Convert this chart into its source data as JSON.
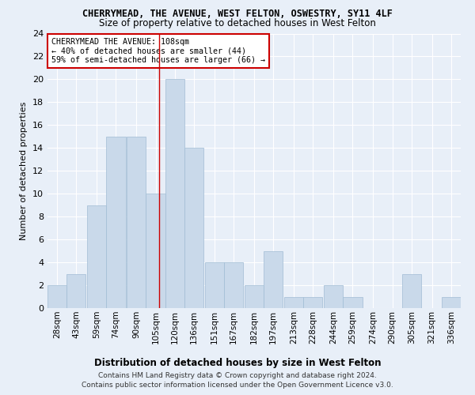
{
  "title": "CHERRYMEAD, THE AVENUE, WEST FELTON, OSWESTRY, SY11 4LF",
  "subtitle": "Size of property relative to detached houses in West Felton",
  "xlabel": "Distribution of detached houses by size in West Felton",
  "ylabel": "Number of detached properties",
  "bar_color": "#c9d9ea",
  "bar_edge_color": "#a0bcd4",
  "vline_x": 108,
  "vline_color": "#cc0000",
  "categories": [
    "28sqm",
    "43sqm",
    "59sqm",
    "74sqm",
    "90sqm",
    "105sqm",
    "120sqm",
    "136sqm",
    "151sqm",
    "167sqm",
    "182sqm",
    "197sqm",
    "213sqm",
    "228sqm",
    "244sqm",
    "259sqm",
    "274sqm",
    "290sqm",
    "305sqm",
    "321sqm",
    "336sqm"
  ],
  "values": [
    2,
    3,
    9,
    15,
    15,
    10,
    20,
    14,
    4,
    4,
    2,
    5,
    1,
    1,
    2,
    1,
    0,
    0,
    3,
    0,
    1
  ],
  "bin_width": 15,
  "bin_starts": [
    21,
    36,
    52,
    67,
    83,
    98,
    113,
    128,
    144,
    159,
    175,
    190,
    206,
    221,
    237,
    252,
    268,
    283,
    298,
    314,
    329
  ],
  "ylim": [
    0,
    24
  ],
  "yticks": [
    0,
    2,
    4,
    6,
    8,
    10,
    12,
    14,
    16,
    18,
    20,
    22,
    24
  ],
  "annotation_text": "CHERRYMEAD THE AVENUE: 108sqm\n← 40% of detached houses are smaller (44)\n59% of semi-detached houses are larger (66) →",
  "footer_line1": "Contains HM Land Registry data © Crown copyright and database right 2024.",
  "footer_line2": "Contains public sector information licensed under the Open Government Licence v3.0.",
  "bg_color": "#e8eff8",
  "grid_color": "#ffffff",
  "annotation_box_color": "#ffffff",
  "annotation_box_edge": "#cc0000"
}
